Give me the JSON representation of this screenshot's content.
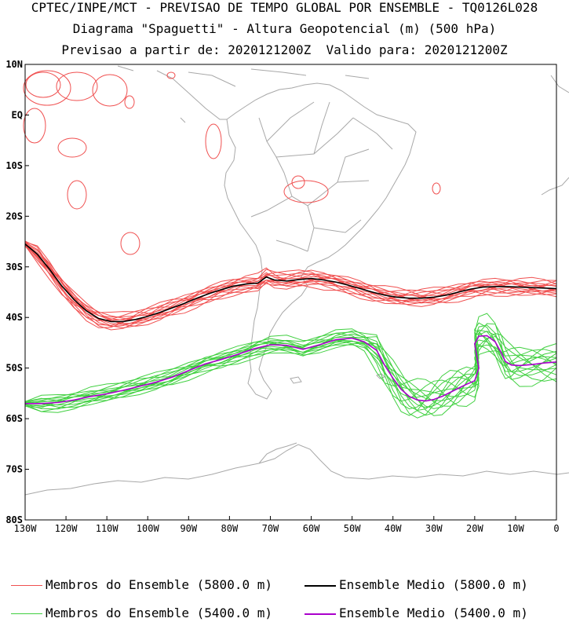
{
  "chart_data": {
    "type": "line",
    "title_lines": [
      "CPTEC/INPE/MCT - PREVISAO DE TEMPO GLOBAL POR ENSEMBLE - TQ0126L028",
      "Diagrama \"Spaguetti\" - Altura Geopotencial (m) (500 hPa)",
      "Previsao a partir de: 2020121200Z  Valido para: 2020121200Z"
    ],
    "xlim": [
      -130,
      0
    ],
    "ylim": [
      -80,
      10
    ],
    "x_ticks": [
      {
        "value": -130,
        "label": "130W"
      },
      {
        "value": -120,
        "label": "120W"
      },
      {
        "value": -110,
        "label": "110W"
      },
      {
        "value": -100,
        "label": "100W"
      },
      {
        "value": -90,
        "label": "90W"
      },
      {
        "value": -80,
        "label": "80W"
      },
      {
        "value": -70,
        "label": "70W"
      },
      {
        "value": -60,
        "label": "60W"
      },
      {
        "value": -50,
        "label": "50W"
      },
      {
        "value": -40,
        "label": "40W"
      },
      {
        "value": -30,
        "label": "30W"
      },
      {
        "value": -20,
        "label": "20W"
      },
      {
        "value": -10,
        "label": "10W"
      },
      {
        "value": 0,
        "label": "0"
      }
    ],
    "y_ticks": [
      {
        "value": 10,
        "label": "10N"
      },
      {
        "value": 0,
        "label": "EQ"
      },
      {
        "value": -10,
        "label": "10S"
      },
      {
        "value": -20,
        "label": "20S"
      },
      {
        "value": -30,
        "label": "30S"
      },
      {
        "value": -40,
        "label": "40S"
      },
      {
        "value": -50,
        "label": "50S"
      },
      {
        "value": -60,
        "label": "60S"
      },
      {
        "value": -70,
        "label": "70S"
      },
      {
        "value": -80,
        "label": "80S"
      }
    ],
    "series": [
      {
        "name": "Ensemble Medio (5800.0 m)",
        "color": "#000000",
        "x": [
          -130,
          -127,
          -124,
          -121,
          -118,
          -115,
          -112,
          -109,
          -106,
          -103,
          -100,
          -97,
          -94,
          -91,
          -88,
          -85,
          -82,
          -79,
          -76,
          -73,
          -71,
          -69,
          -66,
          -63,
          -60,
          -57,
          -54,
          -51,
          -48,
          -45,
          -42,
          -39,
          -36,
          -33,
          -30,
          -27,
          -24,
          -21,
          -18,
          -15,
          -12,
          -9,
          -6,
          -3,
          0
        ],
        "y": [
          -25.5,
          -27.5,
          -30.5,
          -33.8,
          -36.5,
          -38.7,
          -40.2,
          -40.8,
          -40.8,
          -40.4,
          -39.8,
          -39.0,
          -38.1,
          -37.2,
          -36.2,
          -35.3,
          -34.5,
          -33.8,
          -33.4,
          -33.2,
          -32.0,
          -32.6,
          -32.8,
          -32.5,
          -32.3,
          -32.6,
          -33.0,
          -33.6,
          -34.3,
          -35.0,
          -35.6,
          -36.0,
          -36.2,
          -36.2,
          -36.0,
          -35.6,
          -35.0,
          -34.4,
          -34.0,
          -33.9,
          -33.9,
          -34.0,
          -34.1,
          -34.2,
          -34.3
        ]
      },
      {
        "name": "Ensemble Medio (5400.0 m)",
        "color": "#aa00cc",
        "x": [
          -130,
          -126,
          -122,
          -118,
          -114,
          -110,
          -106,
          -102,
          -98,
          -94,
          -90,
          -86,
          -82,
          -78,
          -74,
          -70,
          -66,
          -62,
          -58,
          -54,
          -50,
          -47,
          -44,
          -42,
          -40,
          -38,
          -36,
          -34,
          -32,
          -30,
          -28,
          -26,
          -24,
          -22,
          -20,
          -19,
          -19.5,
          -20,
          -19,
          -17,
          -15,
          -13.5,
          -12.5,
          -11,
          -9,
          -6,
          -3,
          0
        ],
        "y": [
          -57.0,
          -57.0,
          -56.8,
          -56.3,
          -55.6,
          -55.1,
          -54.4,
          -53.6,
          -52.8,
          -51.8,
          -50.5,
          -49.2,
          -48.3,
          -47.3,
          -46.2,
          -45.4,
          -45.5,
          -46.3,
          -45.4,
          -44.4,
          -44.1,
          -44.8,
          -46.5,
          -49.5,
          -52.0,
          -54.2,
          -55.6,
          -56.3,
          -56.5,
          -56.2,
          -55.6,
          -54.8,
          -54.0,
          -53.2,
          -52.5,
          -50.0,
          -47.5,
          -45.2,
          -43.7,
          -43.6,
          -44.8,
          -47.0,
          -48.7,
          -49.4,
          -49.5,
          -49.3,
          -49.0,
          -48.8
        ]
      }
    ],
    "legend": [
      {
        "label": "Membros do Ensemble (5800.0 m)",
        "color": "#f05050"
      },
      {
        "label": "Ensemble Medio (5800.0 m)",
        "color": "#000000"
      },
      {
        "label": "Membros do Ensemble (5400.0 m)",
        "color": "#40d040"
      },
      {
        "label": "Ensemble Medio (5400.0 m)",
        "color": "#aa00cc"
      }
    ],
    "member_count": 14,
    "colors": {
      "member_5800": "#f05050",
      "member_5400": "#40d040",
      "coast": "#a8a8a8",
      "axis": "#000000"
    }
  }
}
